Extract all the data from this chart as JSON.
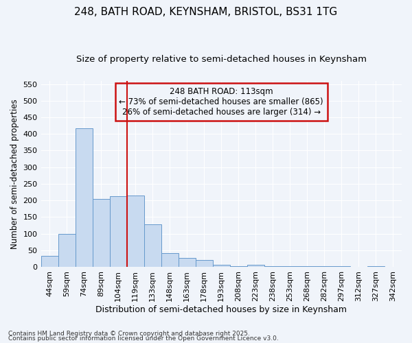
{
  "title1": "248, BATH ROAD, KEYNSHAM, BRISTOL, BS31 1TG",
  "title2": "Size of property relative to semi-detached houses in Keynsham",
  "xlabel": "Distribution of semi-detached houses by size in Keynsham",
  "ylabel": "Number of semi-detached properties",
  "footer1": "Contains HM Land Registry data © Crown copyright and database right 2025.",
  "footer2": "Contains public sector information licensed under the Open Government Licence v3.0.",
  "categories": [
    "44sqm",
    "59sqm",
    "74sqm",
    "89sqm",
    "104sqm",
    "119sqm",
    "133sqm",
    "148sqm",
    "163sqm",
    "178sqm",
    "193sqm",
    "208sqm",
    "223sqm",
    "238sqm",
    "253sqm",
    "268sqm",
    "282sqm",
    "297sqm",
    "312sqm",
    "327sqm",
    "342sqm"
  ],
  "values": [
    33,
    100,
    418,
    205,
    213,
    215,
    128,
    42,
    27,
    20,
    7,
    2,
    7,
    3,
    2,
    1,
    1,
    1,
    0,
    1,
    0
  ],
  "bar_color": "#c8daf0",
  "bar_edge_color": "#6699cc",
  "vline_x": 4.5,
  "vline_color": "#cc1111",
  "annotation_title": "248 BATH ROAD: 113sqm",
  "annotation_line1": "← 73% of semi-detached houses are smaller (865)",
  "annotation_line2": "26% of semi-detached houses are larger (314) →",
  "annotation_box_color": "#cc1111",
  "ylim": [
    0,
    560
  ],
  "yticks": [
    0,
    50,
    100,
    150,
    200,
    250,
    300,
    350,
    400,
    450,
    500,
    550
  ],
  "background_color": "#f0f4fa",
  "grid_color": "#ffffff",
  "title1_fontsize": 11,
  "title2_fontsize": 9.5,
  "xlabel_fontsize": 9,
  "ylabel_fontsize": 8.5,
  "tick_fontsize": 8,
  "annotation_fontsize": 8.5,
  "footer_fontsize": 6.5
}
